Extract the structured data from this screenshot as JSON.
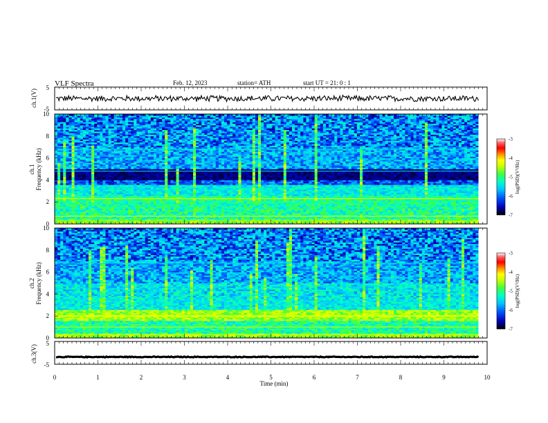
{
  "header": {
    "title": "VLF Spectra",
    "date": "Feb. 12, 2023",
    "station": "station= ATH",
    "start": "start  UT  =   21: 0  : 1"
  },
  "colors": {
    "background": "#ffffff",
    "trace": "#000000",
    "colormap": [
      "#000000",
      "#0000b4",
      "#0050ff",
      "#00c8ff",
      "#00ffc8",
      "#40ff40",
      "#c8ff00",
      "#ffff00",
      "#ff8c00",
      "#ff0000",
      "#ff6464",
      "#ffffff"
    ]
  },
  "chart_data": [
    {
      "type": "line",
      "name": "ch.1 waveform",
      "ylabel": "ch.1(V)",
      "ylim": [
        -5,
        5
      ],
      "yticks": [
        "5",
        "-5"
      ],
      "xlim": [
        0,
        10
      ],
      "series": [
        {
          "mean": 0,
          "amplitude_approx": 1.5
        }
      ]
    },
    {
      "type": "heatmap",
      "name": "ch.1 spectrogram",
      "ylabel": "ch.1",
      "ylabel2": "Frequency  (kHz)",
      "ylim": [
        0,
        10
      ],
      "yticks": [
        "0",
        "2",
        "4",
        "6",
        "8",
        "10"
      ],
      "xlim": [
        0,
        10
      ],
      "data_end_min": 9.8,
      "colorbar": {
        "label": "log(PSD)(V²/Hz)",
        "range": [
          -7,
          -3
        ],
        "ticks": [
          "-3",
          "-4",
          "-5",
          "-6",
          "-7"
        ]
      }
    },
    {
      "type": "heatmap",
      "name": "ch.2 spectrogram",
      "ylabel": "ch.2",
      "ylabel2": "Frequency  (kHz)",
      "ylim": [
        0,
        10
      ],
      "yticks": [
        "0",
        "2",
        "4",
        "6",
        "8",
        "10"
      ],
      "xlim": [
        0,
        10
      ],
      "data_end_min": 9.8,
      "colorbar": {
        "label": "log(PSD)(V²/Hz)",
        "range": [
          -7,
          -3
        ],
        "ticks": [
          "-3",
          "-4",
          "-5",
          "-6",
          "-7"
        ]
      }
    },
    {
      "type": "line",
      "name": "ch.3 waveform",
      "ylabel": "ch.3(V)",
      "ylim": [
        -5,
        5
      ],
      "yticks": [
        "5",
        "-5"
      ],
      "xlim": [
        0,
        10
      ],
      "series": [
        {
          "mean": -1.8,
          "amplitude_approx": 0.2
        }
      ]
    }
  ],
  "xaxis": {
    "label": "Time  (min)",
    "ticks": [
      "0",
      "1",
      "2",
      "3",
      "4",
      "5",
      "6",
      "7",
      "8",
      "9",
      "10"
    ]
  }
}
